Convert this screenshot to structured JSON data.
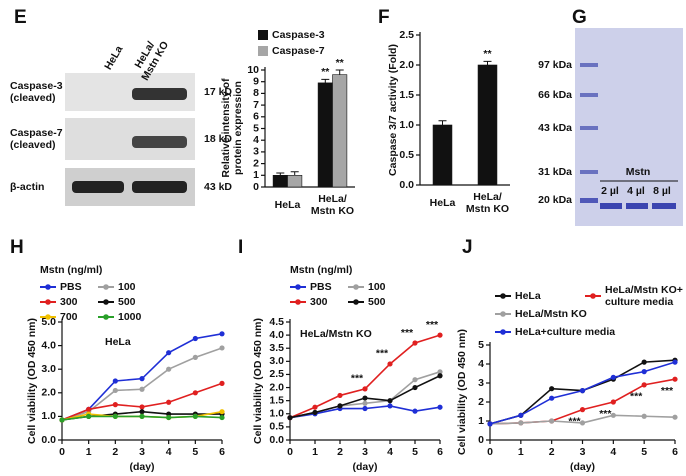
{
  "panel_labels": [
    "E",
    "F",
    "G",
    "H",
    "I",
    "J"
  ],
  "blot": {
    "columns": [
      "HeLa",
      "HeLa/\nMstn KO"
    ],
    "rows": [
      {
        "label": "Caspase-3\n(cleaved)",
        "size": "17 kD"
      },
      {
        "label": "Caspase-7\n(cleaved)",
        "size": "18 kD"
      },
      {
        "label": "β-actin",
        "size": "43 kD"
      }
    ]
  },
  "gel": {
    "markers": [
      "97 kDa",
      "66 kDa",
      "43 kDa",
      "31 kDa",
      "20 kDa"
    ],
    "protein": "Mstn",
    "lanes": [
      "2 µl",
      "4 µl",
      "8 µl"
    ]
  },
  "chart_data": [
    {
      "type": "bar",
      "ylabel": "Relative intensity of\nprotein expression",
      "categories": [
        "HeLa",
        "HeLa/\nMstn KO"
      ],
      "series": [
        {
          "name": "Caspase-3",
          "color": "#111111",
          "values": [
            1.0,
            8.9
          ],
          "errors": [
            0.2,
            0.3
          ],
          "significance": [
            null,
            "**"
          ]
        },
        {
          "name": "Caspase-7",
          "color": "#a6a6a6",
          "values": [
            1.0,
            9.6
          ],
          "errors": [
            0.3,
            0.4
          ],
          "significance": [
            null,
            "**"
          ]
        }
      ],
      "ylim": [
        0,
        10
      ],
      "yticks": [
        0,
        1,
        2,
        3,
        4,
        5,
        6,
        7,
        8,
        9,
        10
      ]
    },
    {
      "type": "bar",
      "ylabel": "Caspase 3/7 activity (Fold)",
      "categories": [
        "HeLa",
        "HeLa/\nMstn KO"
      ],
      "series": [
        {
          "color": "#111111",
          "values": [
            1.0,
            2.0
          ],
          "errors": [
            0.07,
            0.06
          ],
          "significance": [
            null,
            "**"
          ]
        }
      ],
      "ylim": [
        0,
        2.5
      ],
      "yticks": [
        {
          "value": 0,
          "label": "0.0"
        },
        {
          "value": 0.5,
          "label": "0.5"
        },
        {
          "value": 1,
          "label": "1.0"
        },
        {
          "value": 1.5,
          "label": "1.5"
        },
        {
          "value": 2,
          "label": "2.0"
        },
        {
          "value": 2.5,
          "label": "2.5"
        }
      ]
    },
    {
      "type": "line",
      "legend_title": "Mstn (ng/ml)",
      "label": "HeLa",
      "xlabel": "(day)",
      "ylabel": "Cell viability (OD 450 nm)",
      "x": [
        0,
        1,
        2,
        3,
        4,
        5,
        6
      ],
      "xlim": [
        0,
        6
      ],
      "xticks": [
        0,
        1,
        2,
        3,
        4,
        5,
        6
      ],
      "ylim": [
        0,
        5
      ],
      "yticks": [
        {
          "value": 0,
          "label": "0.0"
        },
        {
          "value": 1,
          "label": "1.0"
        },
        {
          "value": 2,
          "label": "2.0"
        },
        {
          "value": 3,
          "label": "3.0"
        },
        {
          "value": 4,
          "label": "4.0"
        },
        {
          "value": 5,
          "label": "5.0"
        }
      ],
      "series": [
        {
          "name": "PBS",
          "color": "#1f2fd6",
          "values": [
            0.85,
            1.3,
            2.5,
            2.6,
            3.7,
            4.3,
            4.5
          ]
        },
        {
          "name": "100",
          "color": "#a0a0a0",
          "values": [
            0.85,
            1.2,
            2.1,
            2.15,
            3.0,
            3.5,
            3.9
          ]
        },
        {
          "name": "300",
          "color": "#e02020",
          "values": [
            0.85,
            1.3,
            1.5,
            1.4,
            1.6,
            2.0,
            2.4
          ]
        },
        {
          "name": "500",
          "color": "#111111",
          "values": [
            0.85,
            1.0,
            1.1,
            1.2,
            1.1,
            1.1,
            1.1
          ]
        },
        {
          "name": "700",
          "color": "#f0c000",
          "values": [
            0.85,
            1.1,
            1.0,
            1.0,
            0.95,
            1.0,
            1.2
          ]
        },
        {
          "name": "1000",
          "color": "#2aa02a",
          "values": [
            0.85,
            1.0,
            1.0,
            1.0,
            0.95,
            1.0,
            0.95
          ]
        }
      ]
    },
    {
      "type": "line",
      "legend_title": "Mstn (ng/ml)",
      "label": "HeLa/Mstn KO",
      "xlabel": "(day)",
      "ylabel": "Cell viability (OD 450 nm)",
      "x": [
        0,
        1,
        2,
        3,
        4,
        5,
        6
      ],
      "xlim": [
        0,
        6
      ],
      "xticks": [
        0,
        1,
        2,
        3,
        4,
        5,
        6
      ],
      "ylim": [
        0,
        4.5
      ],
      "yticks": [
        {
          "value": 0,
          "label": "0.0"
        },
        {
          "value": 0.5,
          "label": "0.5"
        },
        {
          "value": 1,
          "label": "1.0"
        },
        {
          "value": 1.5,
          "label": "1.5"
        },
        {
          "value": 2,
          "label": "2.0"
        },
        {
          "value": 2.5,
          "label": "2.5"
        },
        {
          "value": 3,
          "label": "3.0"
        },
        {
          "value": 3.5,
          "label": "3.5"
        },
        {
          "value": 4,
          "label": "4.0"
        },
        {
          "value": 4.5,
          "label": "4.5"
        }
      ],
      "series": [
        {
          "name": "PBS",
          "color": "#1f2fd6",
          "values": [
            0.85,
            1.0,
            1.2,
            1.2,
            1.3,
            1.1,
            1.25
          ]
        },
        {
          "name": "100",
          "color": "#a0a0a0",
          "values": [
            0.85,
            1.05,
            1.3,
            1.4,
            1.5,
            2.3,
            2.6
          ]
        },
        {
          "name": "300",
          "color": "#e02020",
          "values": [
            0.85,
            1.25,
            1.7,
            1.95,
            2.9,
            3.7,
            4.0
          ]
        },
        {
          "name": "500",
          "color": "#111111",
          "values": [
            0.85,
            1.05,
            1.3,
            1.6,
            1.5,
            2.0,
            2.45
          ]
        }
      ],
      "annotations": [
        {
          "text": "***",
          "x": 3
        },
        {
          "text": "***",
          "x": 4
        },
        {
          "text": "***",
          "x": 5
        },
        {
          "text": "***",
          "x": 6
        }
      ]
    },
    {
      "type": "line",
      "xlabel": "(day)",
      "ylabel": "Cell viability (OD 450 nm)",
      "x": [
        0,
        1,
        2,
        3,
        4,
        5,
        6
      ],
      "xlim": [
        0,
        6
      ],
      "xticks": [
        0,
        1,
        2,
        3,
        4,
        5,
        6
      ],
      "ylim": [
        0,
        5
      ],
      "yticks": [
        0,
        1,
        2,
        3,
        4,
        5
      ],
      "series": [
        {
          "name": "HeLa",
          "color": "#111111",
          "values": [
            0.85,
            1.3,
            2.7,
            2.6,
            3.2,
            4.1,
            4.2
          ]
        },
        {
          "name": "HeLa/Mstn KO+\nculture media",
          "color": "#e02020",
          "values": [
            0.85,
            0.9,
            1.0,
            1.6,
            2.0,
            2.9,
            3.2
          ]
        },
        {
          "name": "HeLa/Mstn KO",
          "color": "#a0a0a0",
          "values": [
            0.85,
            0.9,
            1.0,
            0.9,
            1.3,
            1.25,
            1.2
          ]
        },
        {
          "name": "HeLa+culture media",
          "color": "#1f2fd6",
          "values": [
            0.85,
            1.3,
            2.2,
            2.6,
            3.3,
            3.6,
            4.1
          ]
        }
      ],
      "annotations": [
        {
          "text": "***",
          "x": 3
        },
        {
          "text": "***",
          "x": 4
        },
        {
          "text": "***",
          "x": 5
        },
        {
          "text": "***",
          "x": 6
        }
      ]
    }
  ]
}
